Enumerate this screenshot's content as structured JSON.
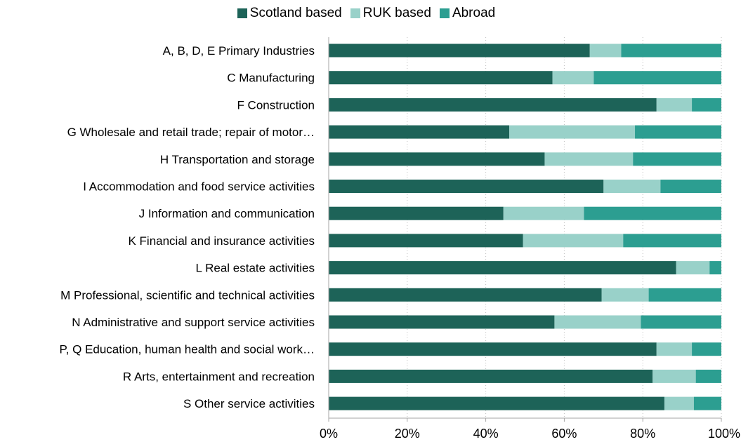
{
  "chart_data": {
    "type": "bar",
    "orientation": "horizontal",
    "stacked": true,
    "percent": true,
    "categories": [
      "A, B, D, E Primary Industries",
      "C Manufacturing",
      "F Construction",
      "G Wholesale and retail trade; repair of motor…",
      "H Transportation and storage",
      "I Accommodation and food service activities",
      "J Information and communication",
      "K Financial and insurance activities",
      "L Real estate activities",
      "M Professional, scientific and technical activities",
      "N Administrative and support service activities",
      "P, Q Education, human health and social work…",
      "R Arts, entertainment and recreation",
      "S Other service activities"
    ],
    "series": [
      {
        "name": "Scotland based",
        "color": "#1d6358",
        "values": [
          66.5,
          57,
          83.5,
          46,
          55,
          70,
          44.5,
          49.5,
          88.5,
          69.5,
          57.5,
          83.5,
          82.5,
          85.5
        ]
      },
      {
        "name": "RUK based",
        "color": "#99d1c9",
        "values": [
          8,
          10.5,
          9,
          32,
          22.5,
          14.5,
          20.5,
          25.5,
          8.5,
          12,
          22,
          9,
          11,
          7.5
        ]
      },
      {
        "name": "Abroad",
        "color": "#2c9e91",
        "values": [
          25.5,
          32.5,
          7.5,
          22,
          22.5,
          15.5,
          35,
          25,
          3,
          18.5,
          20.5,
          7.5,
          6.5,
          7
        ]
      }
    ],
    "xlim": [
      0,
      100
    ],
    "xticks": [
      "0%",
      "20%",
      "40%",
      "60%",
      "80%",
      "100%"
    ],
    "grid": "vertical-dotted",
    "legend_position": "top"
  }
}
